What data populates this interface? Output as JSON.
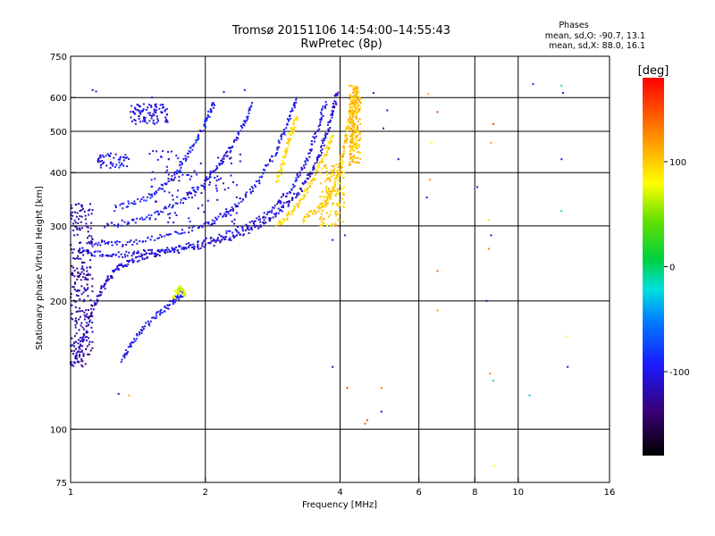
{
  "chart_data": {
    "type": "scatter",
    "title": "Tromsø 20151106 14:54:00–14:55:43",
    "subtitle": "RwPretec (8p)",
    "xlabel": "Frequency [MHz]",
    "ylabel": "Stationary phase Virtual Height [km]",
    "x_scale": "log",
    "y_scale": "log",
    "xlim": [
      1,
      16
    ],
    "ylim": [
      75,
      750
    ],
    "x_ticks": [
      1,
      2,
      4,
      6,
      8,
      10,
      16
    ],
    "x_tick_labels": [
      "1",
      "2",
      "4",
      "6",
      "8",
      "10",
      "16"
    ],
    "y_ticks": [
      75,
      100,
      200,
      300,
      400,
      500,
      600,
      750
    ],
    "y_tick_labels": [
      "75",
      "100",
      "200",
      "300",
      "400",
      "500",
      "600",
      "750"
    ],
    "grid": true,
    "stats": {
      "heading": "Phases",
      "o_line": "mean, sd,O: -90.7, 13.1",
      "x_line": "mean, sd,X:  88.0, 16.1"
    },
    "colorbar": {
      "label": "[deg]",
      "range": [
        -180,
        180
      ],
      "ticks": [
        -100,
        0,
        100
      ],
      "tick_labels": [
        "-100",
        "0",
        "100"
      ]
    },
    "traces": [
      {
        "segments": [
          [
            1.0,
            138
          ],
          [
            1.06,
            160
          ],
          [
            1.12,
            190
          ],
          [
            1.18,
            215
          ],
          [
            1.25,
            235
          ],
          [
            1.35,
            248
          ],
          [
            1.5,
            256
          ],
          [
            1.7,
            262
          ],
          [
            2.0,
            270
          ],
          [
            2.3,
            282
          ],
          [
            2.6,
            298
          ],
          [
            2.9,
            322
          ],
          [
            3.2,
            355
          ],
          [
            3.45,
            400
          ],
          [
            3.65,
            460
          ],
          [
            3.82,
            540
          ],
          [
            3.95,
            620
          ]
        ],
        "phase": -110
      },
      {
        "segments": [
          [
            1.05,
            262
          ],
          [
            1.2,
            256
          ],
          [
            1.4,
            258
          ],
          [
            1.7,
            265
          ],
          [
            2.0,
            276
          ],
          [
            2.4,
            295
          ],
          [
            2.8,
            325
          ],
          [
            3.1,
            365
          ],
          [
            3.35,
            420
          ],
          [
            3.55,
            500
          ],
          [
            3.72,
            590
          ]
        ],
        "phase": -105
      },
      {
        "segments": [
          [
            1.1,
            275
          ],
          [
            1.3,
            272
          ],
          [
            1.6,
            282
          ],
          [
            2.0,
            300
          ],
          [
            2.3,
            330
          ],
          [
            2.6,
            375
          ],
          [
            2.85,
            440
          ],
          [
            3.05,
            520
          ],
          [
            3.2,
            600
          ]
        ],
        "phase": -100
      },
      {
        "segments": [
          [
            1.2,
            300
          ],
          [
            1.45,
            310
          ],
          [
            1.75,
            340
          ],
          [
            2.0,
            380
          ],
          [
            2.2,
            430
          ],
          [
            2.4,
            500
          ],
          [
            2.55,
            580
          ]
        ],
        "phase": -100
      },
      {
        "segments": [
          [
            1.25,
            330
          ],
          [
            1.5,
            350
          ],
          [
            1.7,
            390
          ],
          [
            1.85,
            450
          ],
          [
            2.0,
            520
          ],
          [
            2.1,
            590
          ]
        ],
        "phase": -95
      },
      {
        "segments": [
          [
            1.3,
            145
          ],
          [
            1.4,
            165
          ],
          [
            1.55,
            185
          ],
          [
            1.7,
            200
          ],
          [
            1.8,
            210
          ]
        ],
        "phase": -100
      },
      {
        "segments": [
          [
            1.7,
            205
          ],
          [
            1.75,
            215
          ],
          [
            1.8,
            208
          ]
        ],
        "phase": 70
      },
      {
        "segments": [
          [
            2.9,
            300
          ],
          [
            3.1,
            320
          ],
          [
            3.3,
            350
          ],
          [
            3.5,
            390
          ],
          [
            3.7,
            440
          ],
          [
            3.85,
            490
          ]
        ],
        "phase": 95
      },
      {
        "segments": [
          [
            3.3,
            310
          ],
          [
            3.6,
            330
          ],
          [
            3.85,
            360
          ],
          [
            4.0,
            410
          ],
          [
            4.1,
            470
          ],
          [
            4.2,
            540
          ],
          [
            4.3,
            610
          ]
        ],
        "phase": 100
      },
      {
        "segments": [
          [
            2.9,
            380
          ],
          [
            3.0,
            430
          ],
          [
            3.1,
            490
          ],
          [
            3.2,
            540
          ]
        ],
        "phase": 90
      },
      {
        "segments": [
          [
            4.2,
            420
          ],
          [
            4.25,
            480
          ],
          [
            4.3,
            560
          ],
          [
            4.35,
            630
          ]
        ],
        "phase": 105
      }
    ],
    "clusters": [
      {
        "x": [
          1.0,
          1.12
        ],
        "y": [
          140,
          340
        ],
        "count": 260,
        "phase": -125
      },
      {
        "x": [
          1.35,
          1.65
        ],
        "y": [
          520,
          580
        ],
        "count": 90,
        "phase": -105
      },
      {
        "x": [
          1.15,
          1.35
        ],
        "y": [
          410,
          445
        ],
        "count": 50,
        "phase": -100
      },
      {
        "x": [
          4.2,
          4.45
        ],
        "y": [
          420,
          640
        ],
        "count": 180,
        "phase": 105
      },
      {
        "x": [
          3.6,
          4.1
        ],
        "y": [
          300,
          420
        ],
        "count": 140,
        "phase": 100
      },
      {
        "x": [
          1.5,
          2.4
        ],
        "y": [
          300,
          450
        ],
        "count": 120,
        "phase": -105
      }
    ],
    "isolated_points": [
      [
        1.12,
        625,
        -115
      ],
      [
        1.14,
        620,
        -110
      ],
      [
        1.52,
        600,
        -105
      ],
      [
        2.2,
        618,
        -100
      ],
      [
        2.45,
        625,
        -95
      ],
      [
        4.75,
        615,
        -110
      ],
      [
        5.0,
        508,
        -105
      ],
      [
        5.1,
        560,
        -100
      ],
      [
        5.4,
        430,
        -110
      ],
      [
        6.3,
        612,
        110
      ],
      [
        6.6,
        555,
        150
      ],
      [
        6.4,
        470,
        80
      ],
      [
        6.35,
        385,
        120
      ],
      [
        6.25,
        350,
        -100
      ],
      [
        6.6,
        235,
        140
      ],
      [
        6.6,
        190,
        115
      ],
      [
        8.1,
        370,
        -110
      ],
      [
        8.6,
        310,
        90
      ],
      [
        8.7,
        285,
        -110
      ],
      [
        8.6,
        265,
        130
      ],
      [
        8.8,
        520,
        155
      ],
      [
        8.7,
        470,
        120
      ],
      [
        8.5,
        200,
        -120
      ],
      [
        8.8,
        130,
        -20
      ],
      [
        8.65,
        135,
        130
      ],
      [
        8.85,
        82,
        75
      ],
      [
        10.8,
        645,
        -100
      ],
      [
        12.5,
        640,
        -20
      ],
      [
        12.6,
        615,
        -110
      ],
      [
        12.5,
        430,
        -100
      ],
      [
        12.5,
        325,
        -20
      ],
      [
        10.6,
        120,
        -30
      ],
      [
        12.8,
        165,
        75
      ],
      [
        12.9,
        140,
        -110
      ],
      [
        4.6,
        105,
        150
      ],
      [
        4.55,
        103,
        145
      ],
      [
        4.95,
        110,
        -105
      ],
      [
        4.95,
        125,
        130
      ],
      [
        4.15,
        125,
        160
      ],
      [
        3.85,
        278,
        -110
      ],
      [
        4.1,
        285,
        -90
      ],
      [
        3.85,
        140,
        -120
      ],
      [
        1.28,
        121,
        -115
      ],
      [
        1.35,
        120,
        110
      ]
    ]
  }
}
